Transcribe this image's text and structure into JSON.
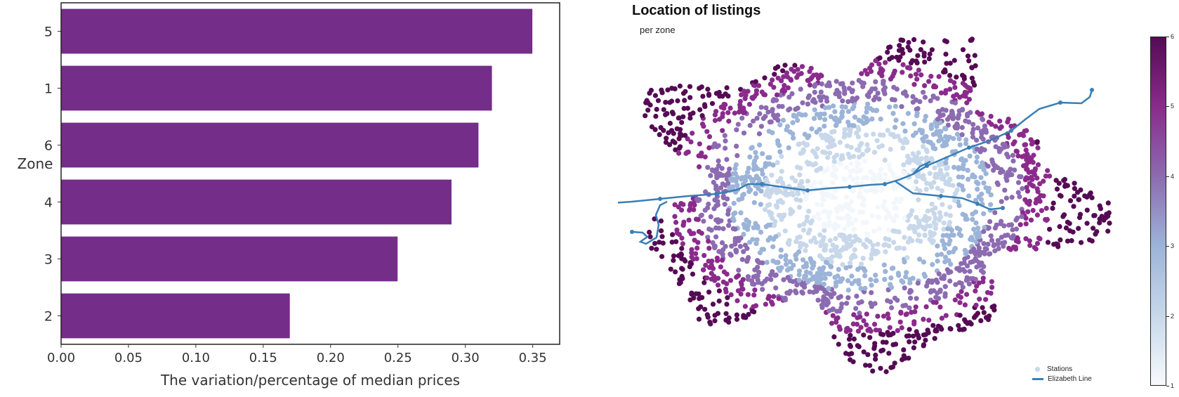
{
  "chart_data": [
    {
      "type": "bar",
      "orientation": "horizontal",
      "ylabel": "Zone",
      "xlabel": "The variation/percentage of median prices",
      "categories": [
        "5",
        "1",
        "6",
        "4",
        "3",
        "2"
      ],
      "values": [
        0.35,
        0.32,
        0.31,
        0.29,
        0.25,
        0.17
      ],
      "xlim": [
        0,
        0.37
      ],
      "xticks": [
        "0.00",
        "0.05",
        "0.10",
        "0.15",
        "0.20",
        "0.25",
        "0.30",
        "0.35"
      ],
      "bar_color": "#752d8a",
      "grid": false
    },
    {
      "type": "scatter",
      "title": "Location of listings",
      "subtitle": "per zone",
      "legend": {
        "placement": "bottom-right",
        "items": [
          {
            "label": "Stations",
            "color": "#c6d8ea"
          },
          {
            "label": "Elizabeth Line",
            "color": "#3a7fb5"
          }
        ]
      },
      "colorbar": {
        "ticks": [
          "1",
          "2",
          "3",
          "4",
          "5",
          "6"
        ],
        "colors": [
          "#f6fafd",
          "#c8d8ea",
          "#9cb4d8",
          "#8c6bb1",
          "#8a2b8c",
          "#550b54"
        ]
      },
      "zone_colors": [
        "#f2f7fb",
        "#c8d8ea",
        "#9cb4d8",
        "#8c6bb1",
        "#8a2b8c",
        "#550b54"
      ],
      "line_color": "#3a7fb5"
    }
  ]
}
